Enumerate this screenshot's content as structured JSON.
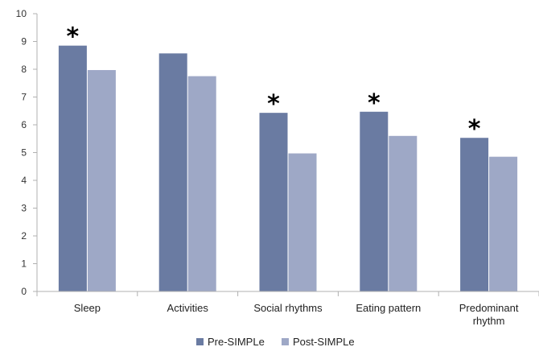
{
  "chart_data": {
    "type": "bar",
    "categories": [
      [
        "Sleep"
      ],
      [
        "Activities"
      ],
      [
        "Social rhythms"
      ],
      [
        "Eating pattern"
      ],
      [
        "Predominant",
        "rhythm"
      ]
    ],
    "series": [
      {
        "name": "Pre-SIMPLe",
        "color": "#6a7ba2",
        "values": [
          8.85,
          8.57,
          6.43,
          6.47,
          5.53
        ]
      },
      {
        "name": "Post-SIMPLe",
        "color": "#9ea8c6",
        "values": [
          7.97,
          7.75,
          4.97,
          5.6,
          4.85
        ]
      }
    ],
    "significance_marker": "*",
    "significant_categories": [
      0,
      2,
      3,
      4
    ],
    "ylim": [
      0,
      10
    ],
    "yticks": [
      0,
      1,
      2,
      3,
      4,
      5,
      6,
      7,
      8,
      9,
      10
    ],
    "grid": false,
    "legend_position": "bottom"
  }
}
